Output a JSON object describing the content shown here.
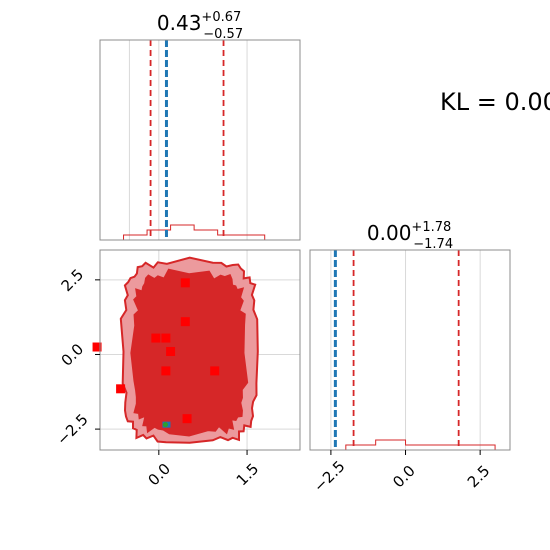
{
  "chart_data": [
    {
      "type": "histogram",
      "panel": "marginal-x",
      "title_value": "0.43",
      "title_plus": "+0.67",
      "title_minus": "−0.57",
      "xlim": [
        -1.0,
        2.4
      ],
      "truth_line": 0.13,
      "quantile_lines": [
        -0.14,
        1.1
      ],
      "bins": [
        -1.0,
        -0.6,
        -0.2,
        0.2,
        0.6,
        1.0,
        1.4,
        1.8,
        2.2
      ],
      "counts": [
        0,
        1,
        2,
        3,
        2,
        1,
        1,
        0
      ],
      "grid": true
    },
    {
      "type": "contour",
      "panel": "joint",
      "xlim": [
        -1.0,
        2.4
      ],
      "ylim": [
        -3.2,
        3.5
      ],
      "x_ticks": [
        "0.0",
        "1.5"
      ],
      "x_tick_values": [
        0.0,
        1.5
      ],
      "y_ticks": [
        "2.5",
        "0.0",
        "−2.5"
      ],
      "y_tick_values": [
        2.5,
        0.0,
        -2.5
      ],
      "outer_region": {
        "x": [
          -0.6,
          1.65
        ],
        "y": [
          -2.9,
          3.1
        ]
      },
      "inner_region": {
        "x": [
          -0.42,
          1.45
        ],
        "y": [
          -2.6,
          2.7
        ]
      },
      "red_markers": [
        {
          "x": -1.05,
          "y": 0.25
        },
        {
          "x": -0.65,
          "y": -1.15
        },
        {
          "x": -0.05,
          "y": 0.55
        },
        {
          "x": 0.12,
          "y": 0.55
        },
        {
          "x": 0.45,
          "y": 2.4
        },
        {
          "x": 0.45,
          "y": 1.1
        },
        {
          "x": 0.2,
          "y": 0.1
        },
        {
          "x": 0.12,
          "y": -0.55
        },
        {
          "x": 0.95,
          "y": -0.55
        },
        {
          "x": 0.48,
          "y": -2.15
        }
      ],
      "truth_point": {
        "x": 0.13,
        "y": -2.35
      },
      "grid": true
    },
    {
      "type": "histogram",
      "panel": "marginal-y",
      "title_value": "0.00",
      "title_plus": "+1.78",
      "title_minus": "−1.74",
      "xlim": [
        -3.2,
        3.5
      ],
      "truth_line": -2.35,
      "quantile_lines": [
        -1.74,
        1.78
      ],
      "x_ticks": [
        "−2.5",
        "0.0",
        "2.5"
      ],
      "x_tick_values": [
        -2.5,
        0.0,
        2.5
      ],
      "bins": [
        -3.0,
        -2.0,
        -1.0,
        0.0,
        1.0,
        2.0,
        3.0
      ],
      "counts": [
        0,
        1,
        2,
        1,
        1,
        1
      ],
      "grid": true
    }
  ],
  "annotation": "KL = 0.00",
  "colors": {
    "red": "#d62728",
    "blue": "#1f77b4",
    "light_red": "#ec9a9d",
    "grid": "#d9d9d9",
    "spine": "#8c8c8c"
  }
}
